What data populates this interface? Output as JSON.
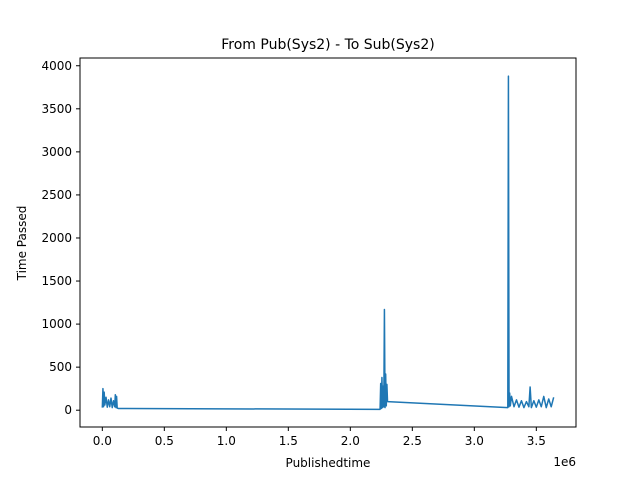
{
  "chart_data": {
    "type": "line",
    "title": "From Pub(Sys2) - To Sub(Sys2)",
    "xlabel": "Publishedtime",
    "ylabel": "Time Passed",
    "x_offset_label": "1e6",
    "xlim": [
      -0.18,
      3.82
    ],
    "ylim": [
      -195,
      4090
    ],
    "x_ticks": [
      0.0,
      0.5,
      1.0,
      1.5,
      2.0,
      2.5,
      3.0,
      3.5
    ],
    "x_tick_labels": [
      "0.0",
      "0.5",
      "1.0",
      "1.5",
      "2.0",
      "2.5",
      "3.0",
      "3.5"
    ],
    "y_ticks": [
      0,
      500,
      1000,
      1500,
      2000,
      2500,
      3000,
      3500,
      4000
    ],
    "y_tick_labels": [
      "0",
      "500",
      "1000",
      "1500",
      "2000",
      "2500",
      "3000",
      "3500",
      "4000"
    ],
    "grid": false,
    "legend": "none",
    "series": [
      {
        "color": "#1f77b4",
        "x": [
          0.0,
          0.005,
          0.01,
          0.015,
          0.02,
          0.03,
          0.04,
          0.05,
          0.06,
          0.07,
          0.08,
          0.09,
          0.1,
          0.105,
          0.11,
          0.115,
          0.12,
          0.13,
          2.24,
          2.245,
          2.25,
          2.255,
          2.26,
          2.265,
          2.27,
          2.275,
          2.28,
          2.285,
          2.29,
          2.295,
          2.3,
          3.27,
          3.275,
          3.28,
          3.285,
          3.29,
          3.3,
          3.32,
          3.34,
          3.36,
          3.38,
          3.4,
          3.42,
          3.44,
          3.45,
          3.46,
          3.48,
          3.5,
          3.52,
          3.54,
          3.56,
          3.58,
          3.6,
          3.62,
          3.64
        ],
        "y": [
          30,
          250,
          40,
          210,
          60,
          150,
          35,
          120,
          40,
          140,
          30,
          110,
          40,
          180,
          30,
          160,
          25,
          20,
          10,
          310,
          20,
          380,
          30,
          280,
          40,
          1170,
          30,
          420,
          50,
          300,
          100,
          30,
          3880,
          40,
          200,
          50,
          160,
          40,
          120,
          35,
          110,
          30,
          100,
          40,
          270,
          30,
          110,
          35,
          120,
          40,
          160,
          30,
          130,
          40,
          150
        ]
      }
    ]
  }
}
